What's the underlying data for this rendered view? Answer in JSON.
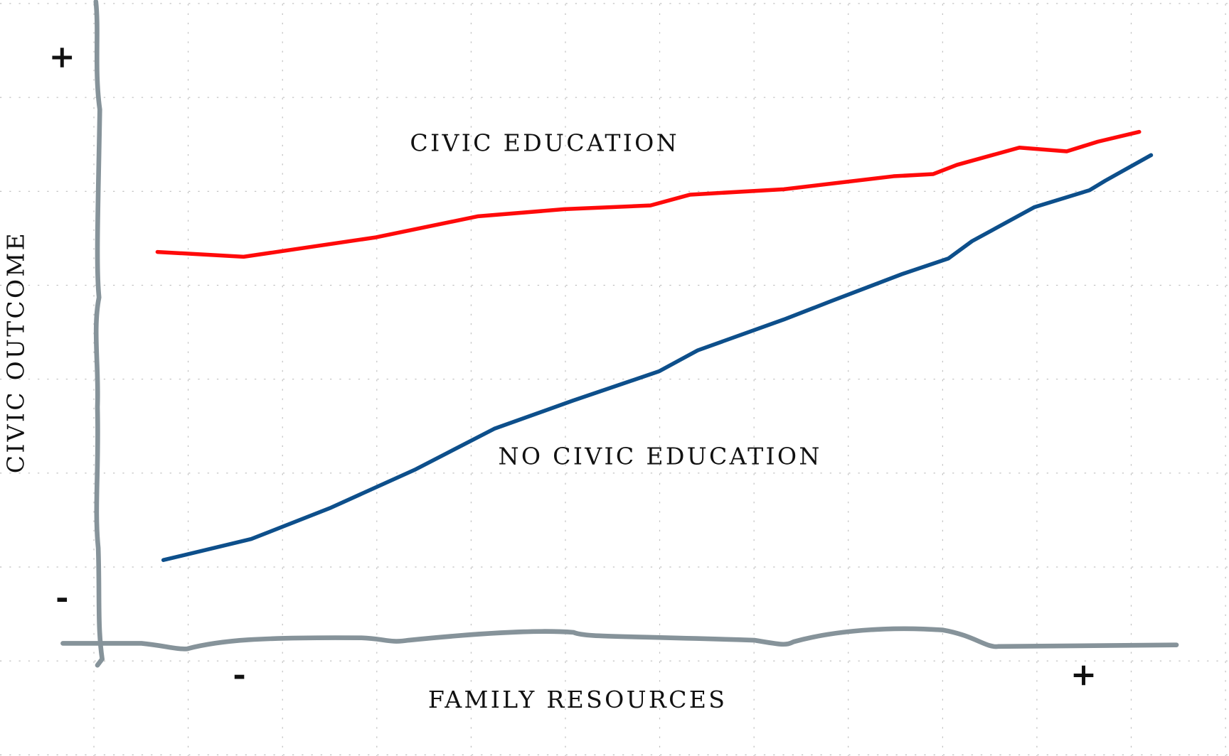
{
  "chart_data": {
    "type": "line",
    "x_label": "FAMILY RESOURCES",
    "y_label": "CIVIC OUTCOME",
    "xlim": [
      -1.7,
      11.1
    ],
    "ylim": [
      -0.8,
      11.1
    ],
    "xticks": [
      {
        "value": 0,
        "label": "-"
      },
      {
        "value": 10,
        "label": "+"
      }
    ],
    "yticks": [
      {
        "value": 0,
        "label": "-"
      },
      {
        "value": 10,
        "label": "+"
      }
    ],
    "series": [
      {
        "name": "CIVIC EDUCATION",
        "color": "#ff0a0a",
        "x": [
          -0.97,
          0.05,
          1.62,
          2.83,
          3.85,
          4.87,
          5.34,
          6.45,
          7.75,
          8.22,
          8.5,
          9.24,
          9.8,
          10.17,
          10.66
        ],
        "values": [
          6.44,
          6.35,
          6.71,
          7.1,
          7.23,
          7.3,
          7.5,
          7.6,
          7.84,
          7.88,
          8.05,
          8.37,
          8.3,
          8.48,
          8.66
        ]
      },
      {
        "name": "NO CIVIC EDUCATION",
        "color": "#0d4f8b",
        "x": [
          -0.9,
          0.14,
          1.07,
          2.09,
          3.02,
          3.95,
          4.97,
          5.43,
          6.45,
          7.01,
          7.85,
          8.4,
          8.68,
          9.42,
          10.07,
          10.26,
          10.8
        ],
        "values": [
          0.74,
          1.13,
          1.7,
          2.42,
          3.17,
          3.69,
          4.23,
          4.62,
          5.19,
          5.53,
          6.03,
          6.32,
          6.64,
          7.27,
          7.58,
          7.76,
          8.23
        ]
      }
    ]
  }
}
